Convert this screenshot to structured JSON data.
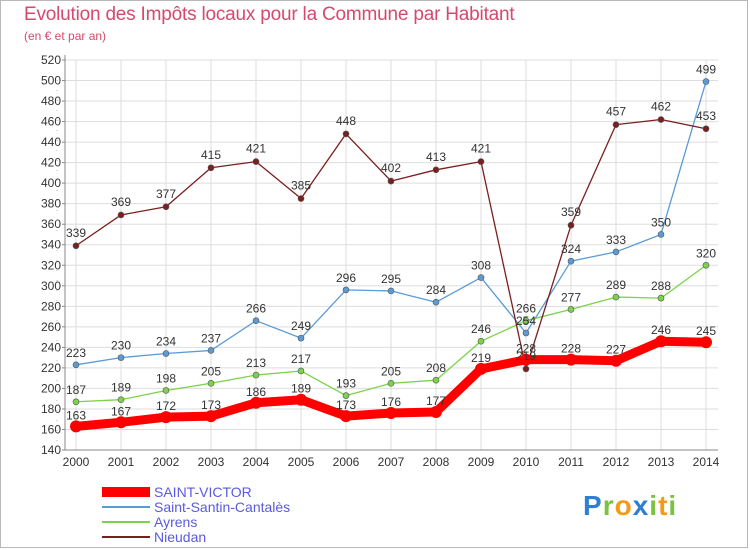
{
  "title": "Evolution des Impôts locaux pour la Commune par Habitant",
  "subtitle": "(en € et par an)",
  "brand": {
    "text": "Proxiti",
    "letters": [
      {
        "ch": "P",
        "color": "#2e7fd4"
      },
      {
        "ch": "r",
        "color": "#7cc242"
      },
      {
        "ch": "o",
        "color": "#f29b1b"
      },
      {
        "ch": "x",
        "color": "#2e7fd4"
      },
      {
        "ch": "i",
        "color": "#7cc242"
      },
      {
        "ch": "t",
        "color": "#f29b1b"
      },
      {
        "ch": "i",
        "color": "#7cc242"
      }
    ]
  },
  "chart_data": {
    "type": "line",
    "x": [
      2000,
      2001,
      2002,
      2003,
      2004,
      2005,
      2006,
      2007,
      2008,
      2009,
      2010,
      2011,
      2012,
      2013,
      2014
    ],
    "ylim": [
      140,
      520
    ],
    "yticks": [
      140,
      160,
      180,
      200,
      220,
      240,
      260,
      280,
      300,
      320,
      340,
      360,
      380,
      400,
      420,
      440,
      460,
      480,
      500,
      520
    ],
    "grid": true,
    "legend_position": "bottom-left",
    "series": [
      {
        "name": "SAINT-VICTOR",
        "color": "#ff0000",
        "values": [
          163,
          167,
          172,
          173,
          186,
          189,
          173,
          176,
          177,
          219,
          228,
          228,
          227,
          246,
          245
        ]
      },
      {
        "name": "Saint-Santin-Cantalès",
        "color": "#5b9bd5",
        "values": [
          223,
          230,
          234,
          237,
          266,
          249,
          296,
          295,
          284,
          308,
          254,
          324,
          333,
          350,
          499
        ]
      },
      {
        "name": "Ayrens",
        "color": "#7cd24a",
        "values": [
          187,
          189,
          198,
          205,
          213,
          217,
          193,
          205,
          208,
          246,
          266,
          277,
          289,
          288,
          320
        ]
      },
      {
        "name": "Nieudan",
        "color": "#7a1f1f",
        "values": [
          339,
          369,
          377,
          415,
          421,
          385,
          448,
          402,
          413,
          421,
          219,
          359,
          457,
          462,
          453
        ]
      }
    ]
  }
}
